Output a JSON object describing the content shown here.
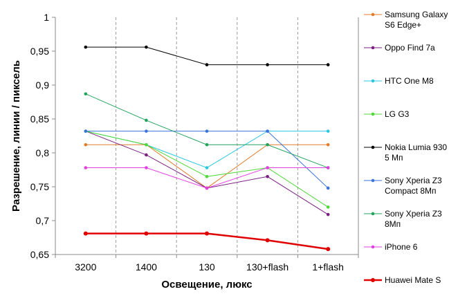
{
  "chart_data": {
    "type": "line",
    "xlabel": "Освещение,  люкс",
    "ylabel": "Разрешение,  линии / пиксель",
    "categories": [
      "3200",
      "1400",
      "130",
      "130+flash",
      "1+flash"
    ],
    "ylim": [
      0.65,
      1.0
    ],
    "yticks": [
      {
        "value": 1.0,
        "label": "1"
      },
      {
        "value": 0.95,
        "label": "0,95"
      },
      {
        "value": 0.9,
        "label": "0,9"
      },
      {
        "value": 0.85,
        "label": "0,85"
      },
      {
        "value": 0.8,
        "label": "0,8"
      },
      {
        "value": 0.75,
        "label": "0,75"
      },
      {
        "value": 0.7,
        "label": "0,7"
      },
      {
        "value": 0.65,
        "label": "0,65"
      }
    ],
    "grid": "vertical-dashed",
    "legend_position": "right",
    "series": [
      {
        "name_lines": [
          "Samsung Galaxy",
          "S6 Edge+"
        ],
        "color": "#E07B2A",
        "values": [
          0.812,
          0.812,
          0.748,
          0.812,
          0.812
        ]
      },
      {
        "name_lines": [
          "Oppo Find 7a"
        ],
        "color": "#7B1F82",
        "values": [
          0.832,
          0.797,
          0.748,
          0.765,
          0.709
        ]
      },
      {
        "name_lines": [
          "HTC One M8"
        ],
        "color": "#2BC6E0",
        "values": [
          0.832,
          0.812,
          0.778,
          0.832,
          0.832
        ]
      },
      {
        "name_lines": [
          "LG G3"
        ],
        "color": "#4CD936",
        "values": [
          0.832,
          0.812,
          0.765,
          0.778,
          0.72
        ]
      },
      {
        "name_lines": [
          "Nokia Lumia 930",
          "5 Мп"
        ],
        "color": "#000000",
        "values": [
          0.956,
          0.956,
          0.93,
          0.93,
          0.93
        ]
      },
      {
        "name_lines": [
          "Sony Xperia Z3",
          "Compact 8Мп"
        ],
        "color": "#3B73D9",
        "values": [
          0.832,
          0.832,
          0.832,
          0.832,
          0.748
        ]
      },
      {
        "name_lines": [
          "Sony Xperia Z3",
          "8Мп"
        ],
        "color": "#21A35C",
        "values": [
          0.887,
          0.848,
          0.812,
          0.812,
          0.778
        ]
      },
      {
        "name_lines": [
          "iPhone 6"
        ],
        "color": "#E23FE0",
        "values": [
          0.778,
          0.778,
          0.748,
          0.778,
          0.778
        ]
      },
      {
        "name_lines": [
          "Huawei Mate S"
        ],
        "color": "#E00000",
        "values": [
          0.681,
          0.681,
          0.681,
          0.671,
          0.658
        ],
        "emphasis": true
      }
    ]
  }
}
